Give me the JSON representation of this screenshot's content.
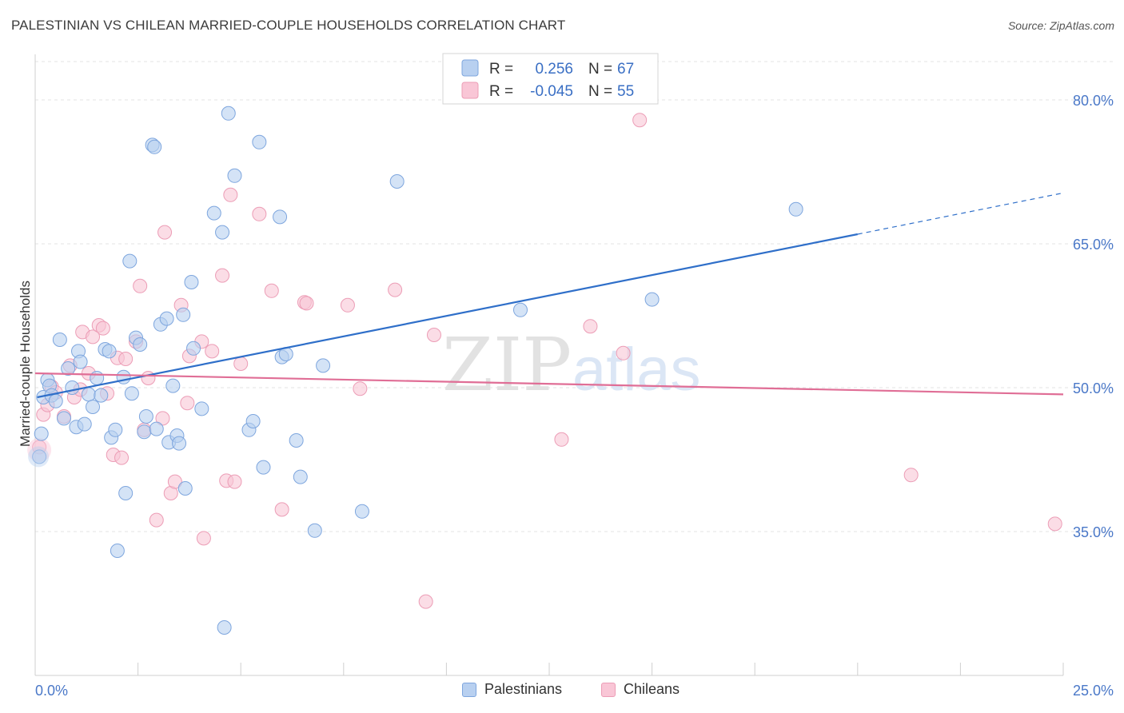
{
  "header": {
    "title": "PALESTINIAN VS CHILEAN MARRIED-COUPLE HOUSEHOLDS CORRELATION CHART",
    "source": "Source: ZipAtlas.com"
  },
  "watermark": {
    "zip": "ZIP",
    "atlas": "atlas"
  },
  "legend_box": {
    "rows": [
      {
        "r_label": "R =",
        "r_value": "0.256",
        "n_label": "N =",
        "n_value": "67"
      },
      {
        "r_label": "R =",
        "r_value": "-0.045",
        "n_label": "N =",
        "n_value": "55"
      }
    ]
  },
  "bottom_legend": {
    "item1": "Palestinians",
    "item2": "Chileans"
  },
  "colors": {
    "blue_fill": "#b8d0f0",
    "blue_stroke": "#7ea6de",
    "blue_line": "#2f6fc9",
    "pink_fill": "#f9c6d6",
    "pink_stroke": "#ec9db6",
    "pink_line": "#e06e96",
    "label_blue": "#4a78c8"
  },
  "chart_data": {
    "type": "scatter",
    "title": "PALESTINIAN VS CHILEAN MARRIED-COUPLE HOUSEHOLDS CORRELATION CHART",
    "xlabel": "",
    "ylabel": "Married-couple Households",
    "xlim": [
      0,
      25
    ],
    "ylim": [
      20,
      84
    ],
    "x_ticks": [
      "0.0%",
      "25.0%"
    ],
    "y_ticks": [
      {
        "value": 80,
        "label": "80.0%"
      },
      {
        "value": 65,
        "label": "65.0%"
      },
      {
        "value": 50,
        "label": "50.0%"
      },
      {
        "value": 35,
        "label": "35.0%"
      }
    ],
    "grid": true,
    "legend_position": "top-center",
    "series": [
      {
        "name": "Palestinians",
        "r": 0.256,
        "n": 67,
        "trend": {
          "x0": 0.05,
          "y0": 49.0,
          "x1": 20.0,
          "y1": 66.0,
          "x_dash_end": 25.0,
          "y_dash_end": 70.3
        },
        "points": [
          [
            0.1,
            42.8
          ],
          [
            0.15,
            45.2
          ],
          [
            0.2,
            49.0
          ],
          [
            0.3,
            50.8
          ],
          [
            0.35,
            50.2
          ],
          [
            0.4,
            49.2
          ],
          [
            0.5,
            48.6
          ],
          [
            0.6,
            55.0
          ],
          [
            0.7,
            46.8
          ],
          [
            0.8,
            52.0
          ],
          [
            0.9,
            50.0
          ],
          [
            1.0,
            45.9
          ],
          [
            1.05,
            53.8
          ],
          [
            1.1,
            52.7
          ],
          [
            1.2,
            46.2
          ],
          [
            1.3,
            49.3
          ],
          [
            1.4,
            48.0
          ],
          [
            1.5,
            51.0
          ],
          [
            1.6,
            49.2
          ],
          [
            1.7,
            54.0
          ],
          [
            1.8,
            53.8
          ],
          [
            1.85,
            44.8
          ],
          [
            1.95,
            45.6
          ],
          [
            2.15,
            51.1
          ],
          [
            2.2,
            39.0
          ],
          [
            2.3,
            63.2
          ],
          [
            2.35,
            49.4
          ],
          [
            2.45,
            55.2
          ],
          [
            2.55,
            54.5
          ],
          [
            2.65,
            45.4
          ],
          [
            2.7,
            47.0
          ],
          [
            2.85,
            75.3
          ],
          [
            2.9,
            75.1
          ],
          [
            2.95,
            45.7
          ],
          [
            3.05,
            56.6
          ],
          [
            3.2,
            57.2
          ],
          [
            3.25,
            44.3
          ],
          [
            3.35,
            50.2
          ],
          [
            3.45,
            45.0
          ],
          [
            3.5,
            44.2
          ],
          [
            3.6,
            57.6
          ],
          [
            3.65,
            39.5
          ],
          [
            3.8,
            61.0
          ],
          [
            3.85,
            54.1
          ],
          [
            4.05,
            47.8
          ],
          [
            4.35,
            68.2
          ],
          [
            4.55,
            66.2
          ],
          [
            4.7,
            78.6
          ],
          [
            4.6,
            25.0
          ],
          [
            4.85,
            72.1
          ],
          [
            5.2,
            45.6
          ],
          [
            5.3,
            46.5
          ],
          [
            5.55,
            41.7
          ],
          [
            5.45,
            75.6
          ],
          [
            5.95,
            67.8
          ],
          [
            6.0,
            53.2
          ],
          [
            6.1,
            53.5
          ],
          [
            6.35,
            44.5
          ],
          [
            6.45,
            40.7
          ],
          [
            6.8,
            35.1
          ],
          [
            7.0,
            52.3
          ],
          [
            7.95,
            37.1
          ],
          [
            8.8,
            71.5
          ],
          [
            11.8,
            58.1
          ],
          [
            15.0,
            59.2
          ],
          [
            18.5,
            68.6
          ],
          [
            2.0,
            33.0
          ]
        ]
      },
      {
        "name": "Chileans",
        "r": -0.045,
        "n": 55,
        "trend": {
          "x0": 0.0,
          "y0": 51.5,
          "x1": 25.0,
          "y1": 49.3
        },
        "points": [
          [
            0.1,
            43.8
          ],
          [
            0.2,
            47.2
          ],
          [
            0.3,
            48.2
          ],
          [
            0.4,
            50.1
          ],
          [
            0.5,
            49.5
          ],
          [
            0.7,
            47.0
          ],
          [
            0.85,
            52.3
          ],
          [
            0.95,
            49.0
          ],
          [
            1.1,
            49.8
          ],
          [
            1.15,
            55.8
          ],
          [
            1.3,
            51.5
          ],
          [
            1.4,
            55.3
          ],
          [
            1.55,
            56.5
          ],
          [
            1.65,
            56.2
          ],
          [
            1.75,
            49.4
          ],
          [
            1.9,
            43.0
          ],
          [
            2.0,
            53.1
          ],
          [
            2.1,
            42.7
          ],
          [
            2.2,
            53.0
          ],
          [
            2.45,
            54.8
          ],
          [
            2.55,
            60.6
          ],
          [
            2.65,
            45.6
          ],
          [
            2.75,
            51.0
          ],
          [
            2.95,
            36.2
          ],
          [
            3.1,
            46.8
          ],
          [
            3.15,
            66.2
          ],
          [
            3.3,
            39.0
          ],
          [
            3.4,
            40.2
          ],
          [
            3.55,
            58.6
          ],
          [
            3.7,
            48.4
          ],
          [
            3.75,
            53.3
          ],
          [
            4.05,
            54.8
          ],
          [
            4.1,
            34.3
          ],
          [
            4.3,
            53.8
          ],
          [
            4.55,
            61.7
          ],
          [
            4.65,
            40.3
          ],
          [
            4.75,
            70.1
          ],
          [
            4.85,
            40.2
          ],
          [
            5.0,
            52.5
          ],
          [
            5.45,
            68.1
          ],
          [
            5.75,
            60.1
          ],
          [
            6.0,
            37.3
          ],
          [
            6.55,
            58.9
          ],
          [
            6.6,
            58.8
          ],
          [
            7.6,
            58.6
          ],
          [
            7.9,
            49.9
          ],
          [
            8.75,
            60.2
          ],
          [
            9.5,
            27.7
          ],
          [
            9.7,
            55.5
          ],
          [
            12.8,
            44.6
          ],
          [
            13.5,
            56.4
          ],
          [
            14.3,
            53.6
          ],
          [
            21.3,
            40.9
          ],
          [
            24.8,
            35.8
          ],
          [
            14.7,
            77.9
          ]
        ]
      }
    ]
  }
}
